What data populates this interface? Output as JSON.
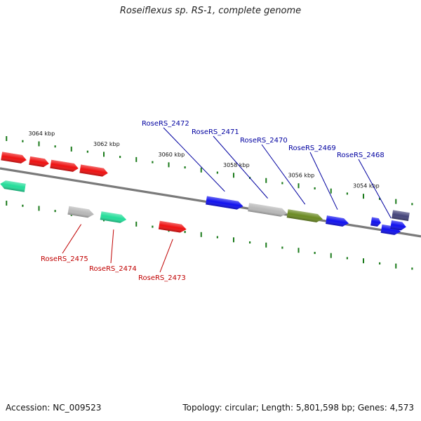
{
  "title": "Roseiflexus sp. RS-1, complete genome",
  "footer": {
    "accession": "Accession: NC_009523",
    "summary": "Topology: circular; Length: 5,801,598 bp; Genes: 4,573"
  },
  "colors": {
    "backbone": "#7a7a7a",
    "tick": "#1a7a1a",
    "upper_label": "#0000a0",
    "lower_label": "#c00000",
    "red": "#ee1111",
    "blue": "#1111ee",
    "teal": "#22dd99",
    "grey": "#b8b8b8",
    "olive": "#6b8a22",
    "navy": "#44447a"
  },
  "scale_labels": [
    {
      "text": "3064 kbp",
      "kbp": 3064
    },
    {
      "text": "3062 kbp",
      "kbp": 3062
    },
    {
      "text": "3060 kbp",
      "kbp": 3060
    },
    {
      "text": "3058 kbp",
      "kbp": 3058
    },
    {
      "text": "3056 kbp",
      "kbp": 3056
    },
    {
      "text": "3054 kbp",
      "kbp": 3054
    }
  ],
  "genes": [
    {
      "name": "RoseRS_2468",
      "strand": "+",
      "start_kbp": 3053.45,
      "end_kbp": 3052.85,
      "color": "blue"
    },
    {
      "name": "RoseRS_2469",
      "strand": "+",
      "start_kbp": 3055.15,
      "end_kbp": 3054.45,
      "color": "blue"
    },
    {
      "name": "RoseRS_2470",
      "strand": "+",
      "start_kbp": 3056.35,
      "end_kbp": 3055.25,
      "color": "olive"
    },
    {
      "name": "RoseRS_2471",
      "strand": "+",
      "start_kbp": 3057.55,
      "end_kbp": 3056.35,
      "color": "grey"
    },
    {
      "name": "RoseRS_2472",
      "strand": "+",
      "start_kbp": 3058.85,
      "end_kbp": 3057.7,
      "color": "blue"
    },
    {
      "name": "RoseRS_2473",
      "strand": "-",
      "start_kbp": 3060.3,
      "end_kbp": 3059.45,
      "color": "red"
    },
    {
      "name": "RoseRS_2474",
      "strand": "-",
      "start_kbp": 3062.1,
      "end_kbp": 3061.3,
      "color": "teal"
    },
    {
      "name": "RoseRS_2475",
      "strand": "-",
      "start_kbp": 3063.1,
      "end_kbp": 3062.3,
      "color": "grey"
    }
  ],
  "labels": [
    {
      "text": "RoseRS_2468",
      "side": "upper"
    },
    {
      "text": "RoseRS_2469",
      "side": "upper"
    },
    {
      "text": "RoseRS_2470",
      "side": "upper"
    },
    {
      "text": "RoseRS_2471",
      "side": "upper"
    },
    {
      "text": "RoseRS_2472",
      "side": "upper"
    },
    {
      "text": "RoseRS_2473",
      "side": "lower"
    },
    {
      "text": "RoseRS_2474",
      "side": "lower"
    },
    {
      "text": "RoseRS_2475",
      "side": "lower"
    }
  ]
}
